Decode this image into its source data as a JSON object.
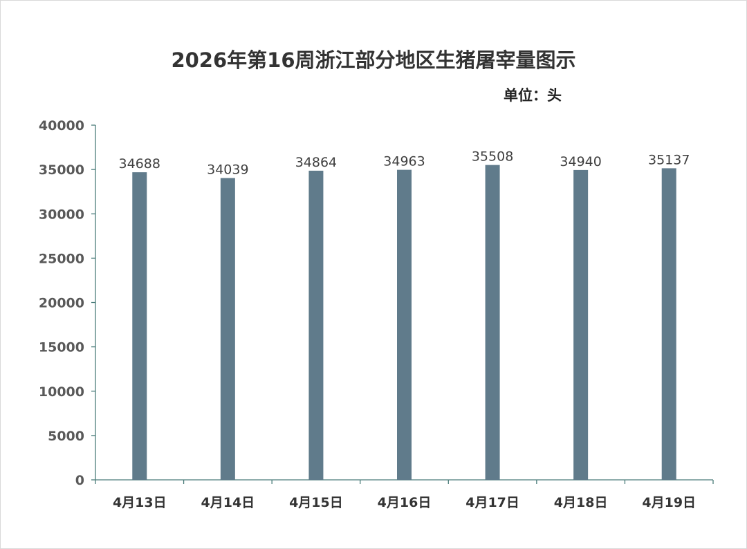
{
  "chart_data": {
    "type": "bar",
    "title": "2026年第16周浙江部分地区生猪屠宰量图示",
    "unit_label": "单位：头",
    "categories": [
      "4月13日",
      "4月14日",
      "4月15日",
      "4月16日",
      "4月17日",
      "4月18日",
      "4月19日"
    ],
    "values": [
      34688,
      34039,
      34864,
      34963,
      35508,
      34940,
      35137
    ],
    "ylim": [
      0,
      40000
    ],
    "yticks": [
      0,
      5000,
      10000,
      15000,
      20000,
      25000,
      30000,
      35000,
      40000
    ],
    "xlabel": "",
    "ylabel": "",
    "grid": false,
    "legend": "none",
    "bar_color": "#607b8b",
    "axis_color": "#4a7c7a"
  }
}
